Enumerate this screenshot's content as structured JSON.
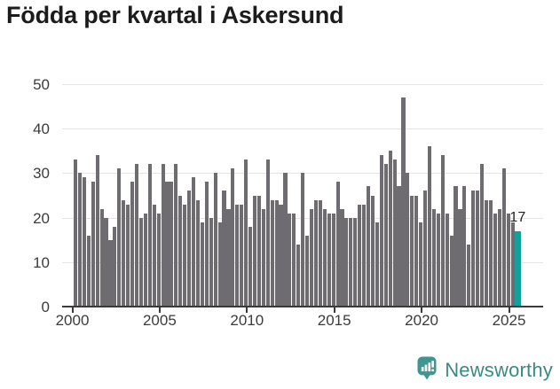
{
  "title": "Födda per kvartal i Askersund",
  "colors": {
    "bar": "#6e6c71",
    "highlight": "#12a19a",
    "gridline": "#e4e4e4",
    "axis": "#3a3a3a",
    "title_text": "#1c1c1c",
    "tick_text": "#3b3b3b",
    "logo_teal": "#3e968e",
    "logo_text": "#3a8a84"
  },
  "chart_data": {
    "type": "bar",
    "title": "Födda per kvartal i Askersund",
    "x_start": "2000-Q1",
    "x_end": "2025-Q2",
    "x_tick_labels": [
      "2000",
      "2005",
      "2010",
      "2015",
      "2020",
      "2025"
    ],
    "y_ticks": [
      0,
      10,
      20,
      30,
      40,
      50
    ],
    "ylim": [
      0,
      50
    ],
    "grid": "horizontal",
    "legend": "none",
    "values": [
      33,
      30,
      29,
      16,
      28,
      34,
      22,
      20,
      15,
      18,
      31,
      24,
      23,
      28,
      32,
      20,
      21,
      32,
      23,
      21,
      32,
      28,
      28,
      32,
      25,
      23,
      26,
      29,
      24,
      19,
      28,
      20,
      30,
      19,
      26,
      22,
      31,
      23,
      23,
      33,
      18,
      25,
      25,
      22,
      33,
      24,
      24,
      23,
      30,
      21,
      21,
      14,
      30,
      16,
      22,
      24,
      24,
      22,
      21,
      21,
      28,
      22,
      20,
      20,
      20,
      23,
      23,
      27,
      25,
      19,
      34,
      32,
      35,
      33,
      27,
      47,
      30,
      25,
      25,
      19,
      26,
      36,
      22,
      21,
      34,
      21,
      16,
      27,
      22,
      27,
      14,
      26,
      26,
      32,
      24,
      24,
      21,
      22,
      31,
      21,
      19,
      17
    ],
    "highlight": {
      "index": 101,
      "label": "17",
      "period": "2025-Q2"
    }
  },
  "annotation": {
    "text": "17"
  },
  "logo": {
    "text": "Newsworthy",
    "icon": "newsworthy-speech-bubble-chart-icon"
  }
}
